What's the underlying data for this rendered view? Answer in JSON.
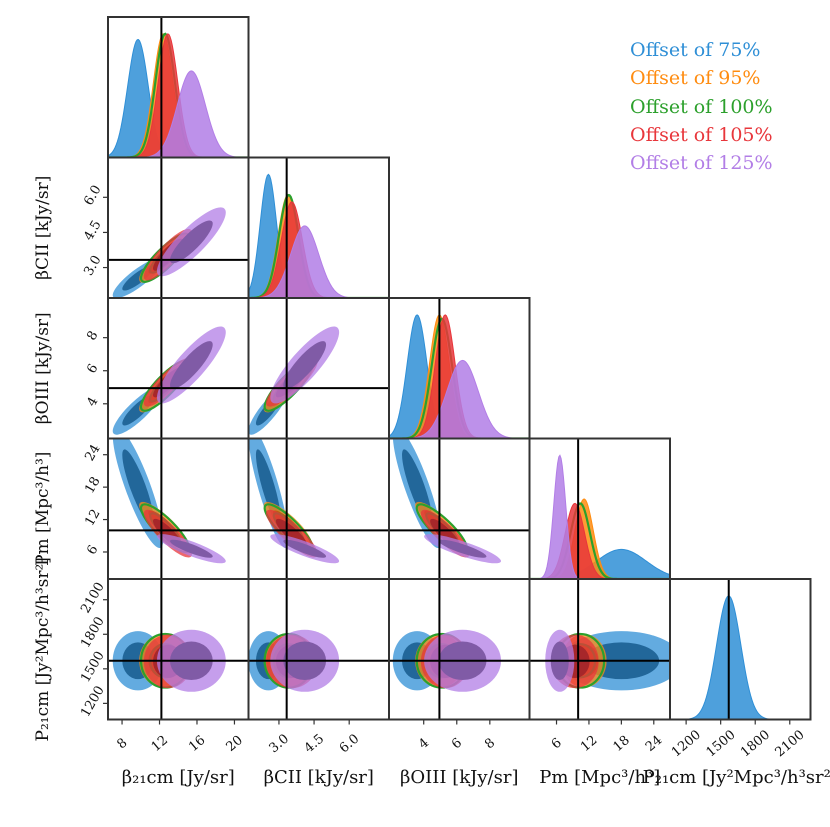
{
  "chart_data": {
    "type": "corner",
    "parameters": [
      {
        "id": "b21",
        "label": "β₂₁cm [Jy/sr]",
        "range": [
          6.5,
          21.5
        ],
        "ticks": [
          8,
          12,
          16,
          20
        ],
        "tick_labels": [
          "8",
          "12",
          "16",
          "20"
        ],
        "truth": 12.2
      },
      {
        "id": "bcii",
        "label": "βCII [kJy/sr]",
        "range": [
          1.7,
          7.7
        ],
        "ticks": [
          3.0,
          4.5,
          6.0
        ],
        "tick_labels": [
          "3.0",
          "4.5",
          "6.0"
        ],
        "truth": 3.33
      },
      {
        "id": "boiii",
        "label": "βOIII [kJy/sr]",
        "range": [
          1.9,
          10.4
        ],
        "ticks": [
          4,
          6,
          8
        ],
        "tick_labels": [
          "4",
          "6",
          "8"
        ],
        "truth": 4.95
      },
      {
        "id": "pm",
        "label": "Pm [Mpc³/h³]",
        "range": [
          1.0,
          27.0
        ],
        "ticks": [
          6,
          12,
          18,
          24
        ],
        "tick_labels": [
          "6",
          "12",
          "18",
          "24"
        ],
        "truth": 10.0
      },
      {
        "id": "p21",
        "label": "P₂₁cm [Jy²Mpc³/h³sr²]",
        "range": [
          1060,
          2280
        ],
        "ticks": [
          1200,
          1500,
          1800,
          2100
        ],
        "tick_labels": [
          "1200",
          "1500",
          "1800",
          "2100"
        ],
        "truth": 1570
      }
    ],
    "series": [
      {
        "name": "Offset of 75%",
        "color": "#2f8fd6",
        "style": "filled",
        "mean": [
          9.7,
          2.55,
          3.6,
          18,
          1570
        ],
        "sd": [
          1.1,
          0.35,
          0.6,
          4.6,
          105
        ]
      },
      {
        "name": "Offset of 95%",
        "color": "#ff8c10",
        "style": "filled",
        "mean": [
          12.4,
          3.38,
          4.95,
          11.1,
          1570
        ],
        "sd": [
          1.05,
          0.42,
          0.6,
          1.7,
          95
        ]
      },
      {
        "name": "Offset of 100%",
        "color": "#2ca02c",
        "style": "outline",
        "mean": [
          12.6,
          3.42,
          5.1,
          10.4,
          1570
        ],
        "sd": [
          1.05,
          0.42,
          0.62,
          1.8,
          95
        ]
      },
      {
        "name": "Offset of 105%",
        "color": "#e8363b",
        "style": "filled",
        "mean": [
          12.9,
          3.55,
          5.3,
          9.4,
          1565
        ],
        "sd": [
          1.05,
          0.45,
          0.6,
          1.8,
          95
        ]
      },
      {
        "name": "Offset of 125%",
        "color": "#b27ee6",
        "style": "filled",
        "mean": [
          15.4,
          4.1,
          6.35,
          6.6,
          1570
        ],
        "sd": [
          1.5,
          0.6,
          0.95,
          1.1,
          110
        ]
      }
    ],
    "correlations": [
      [
        1,
        0.85,
        0.85,
        -0.85,
        0.0
      ],
      [
        0.85,
        1,
        0.85,
        -0.85,
        0.0
      ],
      [
        0.85,
        0.85,
        1,
        -0.85,
        0.0
      ],
      [
        -0.85,
        -0.85,
        -0.85,
        1,
        0.0
      ],
      [
        0.0,
        0.0,
        0.0,
        0.0,
        1
      ]
    ],
    "p21_single_series": "Offset of 75%",
    "legend_position": "top-right",
    "grid": false
  }
}
